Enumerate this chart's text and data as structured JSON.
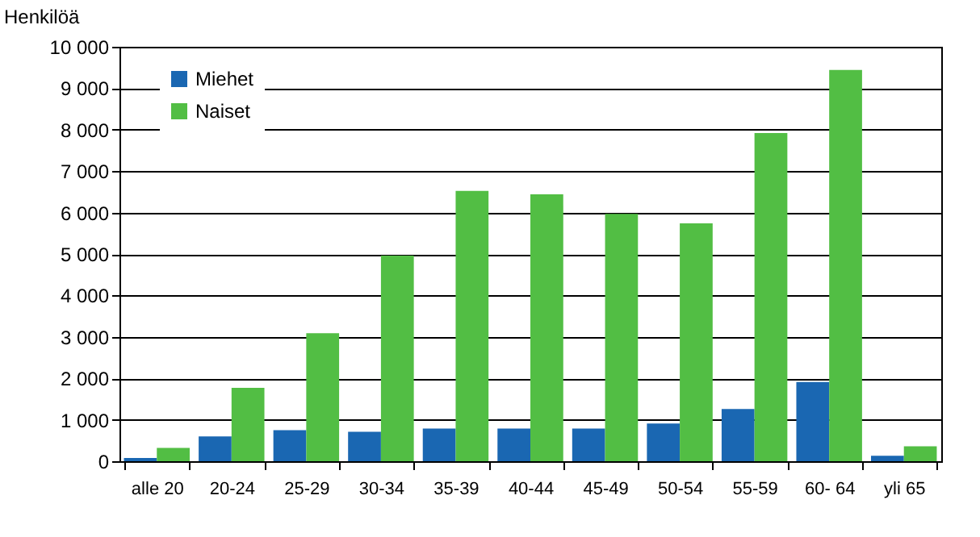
{
  "chart_data": {
    "type": "bar",
    "ylabel": "Henkilöä",
    "categories": [
      "alle 20",
      "20-24",
      "25-29",
      "30-34",
      "35-39",
      "40-44",
      "45-49",
      "50-54",
      "55-59",
      "60- 64",
      "yli 65"
    ],
    "series": [
      {
        "name": "Miehet",
        "color": "#1a67b2",
        "values": [
          80,
          600,
          750,
          710,
          790,
          790,
          790,
          910,
          1260,
          1910,
          130
        ]
      },
      {
        "name": "Naiset",
        "color": "#52be44",
        "values": [
          320,
          1770,
          3090,
          4960,
          6520,
          6440,
          5970,
          5740,
          7920,
          9440,
          360
        ]
      }
    ],
    "ylim": [
      0,
      10000
    ],
    "yticks": [
      0,
      {
        "value": 1000,
        "label": "1 000"
      },
      {
        "value": 2000,
        "label": "2 000"
      },
      {
        "value": 3000,
        "label": "3 000"
      },
      {
        "value": 4000,
        "label": "4 000"
      },
      {
        "value": 5000,
        "label": "5 000"
      },
      {
        "value": 6000,
        "label": "6 000"
      },
      {
        "value": 7000,
        "label": "7 000"
      },
      {
        "value": 8000,
        "label": "8 000"
      },
      {
        "value": 9000,
        "label": "9 000"
      },
      {
        "value": 10000,
        "label": "10 000"
      }
    ],
    "grid": "y",
    "legend": "top left"
  }
}
